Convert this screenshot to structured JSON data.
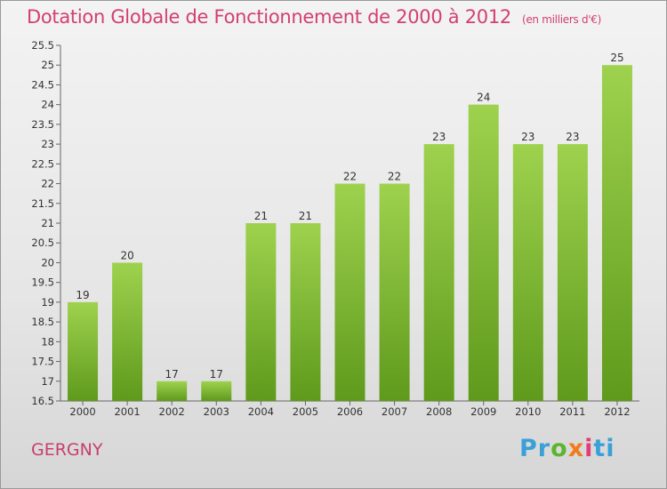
{
  "title": "Dotation Globale de Fonctionnement de 2000 à 2012",
  "unit_note": "(en milliers d'€)",
  "commune": "GERGNY",
  "logo": {
    "letters": [
      "P",
      "r",
      "o",
      "x",
      "i",
      "t",
      "i"
    ],
    "colors": [
      "#3aa0d8",
      "#3aa0d8",
      "#5cb531",
      "#f07c1b",
      "#e23d7a",
      "#3aa0d8",
      "#3aa0d8"
    ]
  },
  "colors": {
    "bar_top": "#9ed24e",
    "bar_bottom": "#5f9a1c",
    "title": "#d2406e",
    "axis": "#666666"
  },
  "chart_data": {
    "type": "bar",
    "title": "Dotation Globale de Fonctionnement de 2000 à 2012",
    "categories": [
      "2000",
      "2001",
      "2002",
      "2003",
      "2004",
      "2005",
      "2006",
      "2007",
      "2008",
      "2009",
      "2010",
      "2011",
      "2012"
    ],
    "values": [
      19,
      20,
      17,
      17,
      21,
      21,
      22,
      22,
      23,
      24,
      23,
      23,
      25
    ],
    "value_labels": [
      "19",
      "20",
      "17",
      "17",
      "21",
      "21",
      "22",
      "22",
      "23",
      "24",
      "23",
      "23",
      "25"
    ],
    "ylim": [
      16.5,
      25.5
    ],
    "yticks": [
      16.5,
      17,
      17.5,
      18,
      18.5,
      19,
      19.5,
      20,
      20.5,
      21,
      21.5,
      22,
      22.5,
      23,
      23.5,
      24,
      24.5,
      25,
      25.5
    ],
    "ytick_labels": [
      "16.5",
      "17",
      "17.5",
      "18",
      "18.5",
      "19",
      "19.5",
      "20",
      "20.5",
      "21",
      "21.5",
      "22",
      "22.5",
      "23",
      "23.5",
      "24",
      "24.5",
      "25",
      "25.5"
    ],
    "grid": false,
    "xlabel": "",
    "ylabel": ""
  }
}
